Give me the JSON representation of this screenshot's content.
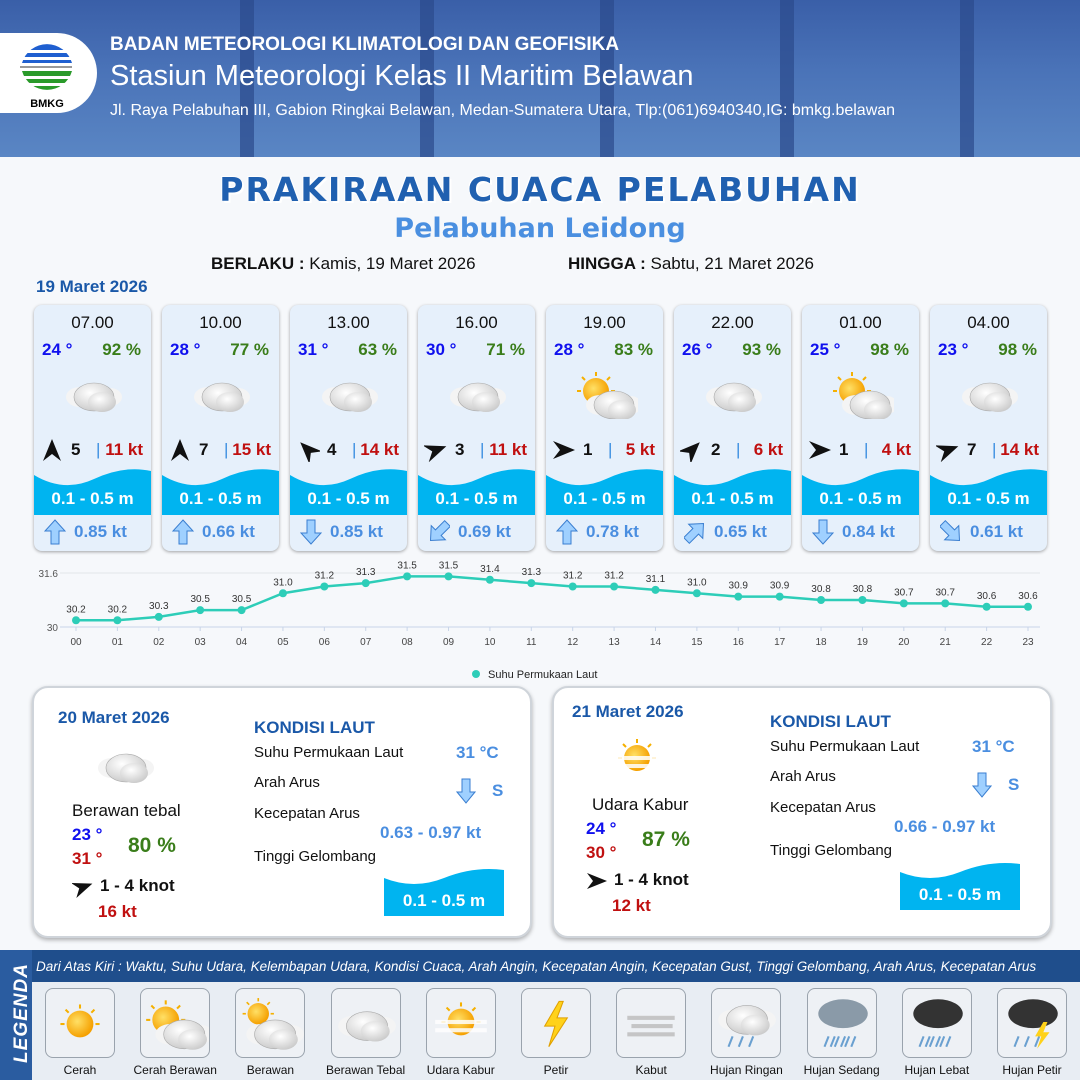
{
  "header": {
    "agency": "BADAN METEOROLOGI KLIMATOLOGI DAN GEOFISIKA",
    "station": "Stasiun Meteorologi Kelas II Maritim Belawan",
    "address": "Jl. Raya Pelabuhan III, Gabion Ringkai Belawan, Medan-Sumatera Utara, Tlp:(061)6940340,IG: bmkg.belawan",
    "logo_text": "BMKG"
  },
  "title": "PRAKIRAAN CUACA PELABUHAN",
  "subtitle": "Pelabuhan Leidong",
  "validity": {
    "from_label": "BERLAKU :",
    "from": "Kamis, 19 Maret 2026",
    "to_label": "HINGGA :",
    "to": "Sabtu, 21 Maret 2026"
  },
  "day1": {
    "date": "19 Maret 2026",
    "cards": [
      {
        "time": "07.00",
        "temp": "24 °",
        "rh": "92 %",
        "icon": "berawan-tebal",
        "wind_dir_deg": 0,
        "wind": "5",
        "gust": "11 kt",
        "wave": "0.1 - 0.5 m",
        "current_dir_deg": 0,
        "current": "0.85 kt"
      },
      {
        "time": "10.00",
        "temp": "28 °",
        "rh": "77 %",
        "icon": "berawan-tebal",
        "wind_dir_deg": 0,
        "wind": "7",
        "gust": "15 kt",
        "wave": "0.1 - 0.5 m",
        "current_dir_deg": 0,
        "current": "0.66 kt"
      },
      {
        "time": "13.00",
        "temp": "31 °",
        "rh": "63 %",
        "icon": "berawan-tebal",
        "wind_dir_deg": 315,
        "wind": "4",
        "gust": "14 kt",
        "wave": "0.1 - 0.5 m",
        "current_dir_deg": 180,
        "current": "0.85 kt"
      },
      {
        "time": "16.00",
        "temp": "30 °",
        "rh": "71 %",
        "icon": "berawan-tebal",
        "wind_dir_deg": 70,
        "wind": "3",
        "gust": "11 kt",
        "wave": "0.1 - 0.5 m",
        "current_dir_deg": 225,
        "current": "0.69 kt"
      },
      {
        "time": "19.00",
        "temp": "28 °",
        "rh": "83 %",
        "icon": "cerah-berawan",
        "wind_dir_deg": 90,
        "wind": "1",
        "gust": "5 kt",
        "wave": "0.1 - 0.5 m",
        "current_dir_deg": 0,
        "current": "0.78 kt"
      },
      {
        "time": "22.00",
        "temp": "26 °",
        "rh": "93 %",
        "icon": "berawan-tebal",
        "wind_dir_deg": 45,
        "wind": "2",
        "gust": "6 kt",
        "wave": "0.1 - 0.5 m",
        "current_dir_deg": 45,
        "current": "0.65 kt"
      },
      {
        "time": "01.00",
        "temp": "25 °",
        "rh": "98 %",
        "icon": "cerah-berawan",
        "wind_dir_deg": 90,
        "wind": "1",
        "gust": "4 kt",
        "wave": "0.1 - 0.5 m",
        "current_dir_deg": 180,
        "current": "0.84 kt"
      },
      {
        "time": "04.00",
        "temp": "23 °",
        "rh": "98 %",
        "icon": "berawan-tebal",
        "wind_dir_deg": 70,
        "wind": "7",
        "gust": "14 kt",
        "wave": "0.1 - 0.5 m",
        "current_dir_deg": 135,
        "current": "0.61 kt"
      }
    ]
  },
  "chart_data": {
    "type": "line",
    "x": [
      "00",
      "01",
      "02",
      "03",
      "04",
      "05",
      "06",
      "07",
      "08",
      "09",
      "10",
      "11",
      "12",
      "13",
      "14",
      "15",
      "16",
      "17",
      "18",
      "19",
      "20",
      "21",
      "22",
      "23"
    ],
    "series": [
      {
        "name": "Suhu Permukaan Laut",
        "values": [
          30.2,
          30.2,
          30.3,
          30.5,
          30.5,
          31.0,
          31.2,
          31.3,
          31.5,
          31.5,
          31.4,
          31.3,
          31.2,
          31.2,
          31.1,
          31.0,
          30.9,
          30.9,
          30.8,
          30.8,
          30.7,
          30.7,
          30.6,
          30.6
        ],
        "color": "#2dcdb8"
      }
    ],
    "ylim": [
      30,
      31.6
    ],
    "yticks": [
      "30",
      "31.6"
    ],
    "legend": "bottom",
    "grid": true
  },
  "day2": {
    "date": "20 Maret 2026",
    "condition": "Berawan tebal",
    "icon": "berawan-tebal",
    "tmin": "23 °",
    "tmax": "31 °",
    "rh": "80 %",
    "wind": "1  - 4 knot",
    "wind_dir_deg": 70,
    "gust": "16 kt",
    "sea": {
      "heading": "KONDISI LAUT",
      "sst_label": "Suhu Permukaan Laut",
      "sst": "31 °C",
      "dir_label": "Arah Arus",
      "dir": "S",
      "speed_label": "Kecepatan Arus",
      "speed": "0.63 - 0.97 kt",
      "wave_label": "Tinggi Gelombang",
      "wave": "0.1 - 0.5 m"
    }
  },
  "day3": {
    "date": "21 Maret 2026",
    "condition": "Udara Kabur",
    "icon": "udara-kabur",
    "tmin": "24 °",
    "tmax": "30 °",
    "rh": "87 %",
    "wind": "1  - 4 knot",
    "wind_dir_deg": 90,
    "gust": "12 kt",
    "sea": {
      "heading": "KONDISI LAUT",
      "sst_label": "Suhu Permukaan Laut",
      "sst": "31 °C",
      "dir_label": "Arah Arus",
      "dir": "S",
      "speed_label": "Kecepatan Arus",
      "speed": "0.66  - 0.97 kt",
      "wave_label": "Tinggi Gelombang",
      "wave": "0.1 - 0.5 m"
    }
  },
  "legend": {
    "title": "LEGENDA",
    "description": "Dari Atas Kiri : Waktu, Suhu Udara, Kelembapan Udara, Kondisi Cuaca, Arah Angin, Kecepatan Angin, Kecepatan Gust, Tinggi Gelombang, Arah Arus, Kecepatan Arus",
    "items": [
      {
        "label": "Cerah",
        "icon": "cerah"
      },
      {
        "label": "Cerah Berawan",
        "icon": "cerah-berawan"
      },
      {
        "label": "Berawan",
        "icon": "berawan"
      },
      {
        "label": "Berawan Tebal",
        "icon": "berawan-tebal"
      },
      {
        "label": "Udara Kabur",
        "icon": "udara-kabur"
      },
      {
        "label": "Petir",
        "icon": "petir"
      },
      {
        "label": "Kabut",
        "icon": "kabut"
      },
      {
        "label": "Hujan Ringan",
        "icon": "hujan-ringan"
      },
      {
        "label": "Hujan Sedang",
        "icon": "hujan-sedang"
      },
      {
        "label": "Hujan Lebat",
        "icon": "hujan-lebat"
      },
      {
        "label": "Hujan Petir",
        "icon": "hujan-petir"
      }
    ]
  },
  "colors": {
    "title": "#2060b0",
    "temp": "#1010ee",
    "rh": "#3a7d1a",
    "gust": "#c01010",
    "wave": "#00b4f0",
    "current": "#4a8ee0"
  }
}
